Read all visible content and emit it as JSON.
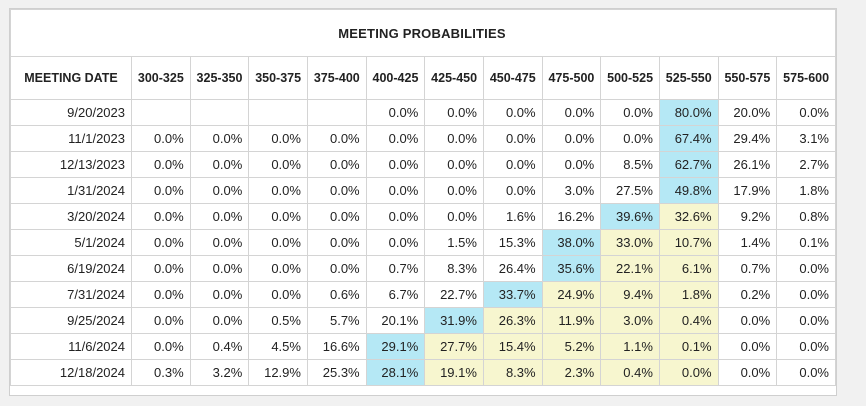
{
  "title": "MEETING PROBABILITIES",
  "columns": [
    "MEETING DATE",
    "300-325",
    "325-350",
    "350-375",
    "375-400",
    "400-425",
    "425-450",
    "450-475",
    "475-500",
    "500-525",
    "525-550",
    "550-575",
    "575-600"
  ],
  "rows": [
    {
      "date": "9/20/2023",
      "values": [
        "",
        "",
        "",
        "",
        "0.0%",
        "0.0%",
        "0.0%",
        "0.0%",
        "0.0%",
        "80.0%",
        "20.0%",
        "0.0%"
      ],
      "max_index": 9
    },
    {
      "date": "11/1/2023",
      "values": [
        "0.0%",
        "0.0%",
        "0.0%",
        "0.0%",
        "0.0%",
        "0.0%",
        "0.0%",
        "0.0%",
        "0.0%",
        "67.4%",
        "29.4%",
        "3.1%"
      ],
      "max_index": 9
    },
    {
      "date": "12/13/2023",
      "values": [
        "0.0%",
        "0.0%",
        "0.0%",
        "0.0%",
        "0.0%",
        "0.0%",
        "0.0%",
        "0.0%",
        "8.5%",
        "62.7%",
        "26.1%",
        "2.7%"
      ],
      "max_index": 9
    },
    {
      "date": "1/31/2024",
      "values": [
        "0.0%",
        "0.0%",
        "0.0%",
        "0.0%",
        "0.0%",
        "0.0%",
        "0.0%",
        "3.0%",
        "27.5%",
        "49.8%",
        "17.9%",
        "1.8%"
      ],
      "max_index": 9
    },
    {
      "date": "3/20/2024",
      "values": [
        "0.0%",
        "0.0%",
        "0.0%",
        "0.0%",
        "0.0%",
        "0.0%",
        "1.6%",
        "16.2%",
        "39.6%",
        "32.6%",
        "9.2%",
        "0.8%"
      ],
      "max_index": 8
    },
    {
      "date": "5/1/2024",
      "values": [
        "0.0%",
        "0.0%",
        "0.0%",
        "0.0%",
        "0.0%",
        "1.5%",
        "15.3%",
        "38.0%",
        "33.0%",
        "10.7%",
        "1.4%",
        "0.1%"
      ],
      "max_index": 7
    },
    {
      "date": "6/19/2024",
      "values": [
        "0.0%",
        "0.0%",
        "0.0%",
        "0.0%",
        "0.7%",
        "8.3%",
        "26.4%",
        "35.6%",
        "22.1%",
        "6.1%",
        "0.7%",
        "0.0%"
      ],
      "max_index": 7
    },
    {
      "date": "7/31/2024",
      "values": [
        "0.0%",
        "0.0%",
        "0.0%",
        "0.6%",
        "6.7%",
        "22.7%",
        "33.7%",
        "24.9%",
        "9.4%",
        "1.8%",
        "0.2%",
        "0.0%"
      ],
      "max_index": 6
    },
    {
      "date": "9/25/2024",
      "values": [
        "0.0%",
        "0.0%",
        "0.5%",
        "5.7%",
        "20.1%",
        "31.9%",
        "26.3%",
        "11.9%",
        "3.0%",
        "0.4%",
        "0.0%",
        "0.0%"
      ],
      "max_index": 5
    },
    {
      "date": "11/6/2024",
      "values": [
        "0.0%",
        "0.4%",
        "4.5%",
        "16.6%",
        "29.1%",
        "27.7%",
        "15.4%",
        "5.2%",
        "1.1%",
        "0.1%",
        "0.0%",
        "0.0%"
      ],
      "max_index": 4
    },
    {
      "date": "12/18/2024",
      "values": [
        "0.3%",
        "3.2%",
        "12.9%",
        "25.3%",
        "28.1%",
        "19.1%",
        "8.3%",
        "2.3%",
        "0.4%",
        "0.0%",
        "0.0%",
        "0.0%"
      ],
      "max_index": 4
    }
  ],
  "colors": {
    "highest_probability": "#b5e8f5",
    "at_or_above_current_path": "#f7f6cf"
  }
}
